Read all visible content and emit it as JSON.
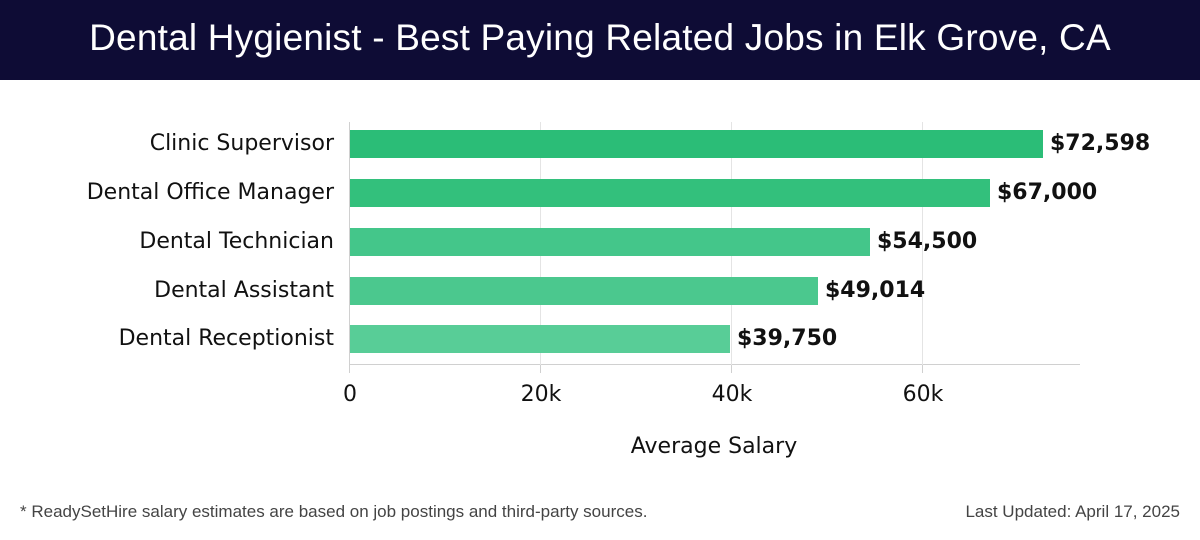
{
  "header": {
    "title": "Dental Hygienist - Best Paying Related Jobs in Elk Grove, CA",
    "background_color": "#0e0c35"
  },
  "chart_data": {
    "type": "bar",
    "orientation": "horizontal",
    "title": "Dental Hygienist - Best Paying Related Jobs in Elk Grove, CA",
    "xlabel": "Average Salary",
    "ylabel": "",
    "categories": [
      "Clinic Supervisor",
      "Dental Office Manager",
      "Dental Technician",
      "Dental Assistant",
      "Dental Receptionist"
    ],
    "values": [
      72598,
      67000,
      54500,
      49014,
      39750
    ],
    "value_labels": [
      "$72,598",
      "$67,000",
      "$54,500",
      "$49,014",
      "$39,750"
    ],
    "bar_colors": [
      "#2bbd77",
      "#33c07c",
      "#44c68a",
      "#4bc88e",
      "#58cd97"
    ],
    "xticks": [
      0,
      20000,
      40000,
      60000
    ],
    "xtick_labels": [
      "0",
      "20k",
      "40k",
      "60k"
    ],
    "xlim": [
      0,
      76500
    ],
    "grid": "vertical",
    "legend": "none"
  },
  "footer": {
    "note": "* ReadySetHire salary estimates are based on job postings and third-party sources.",
    "last_updated": "Last Updated: April 17, 2025"
  }
}
